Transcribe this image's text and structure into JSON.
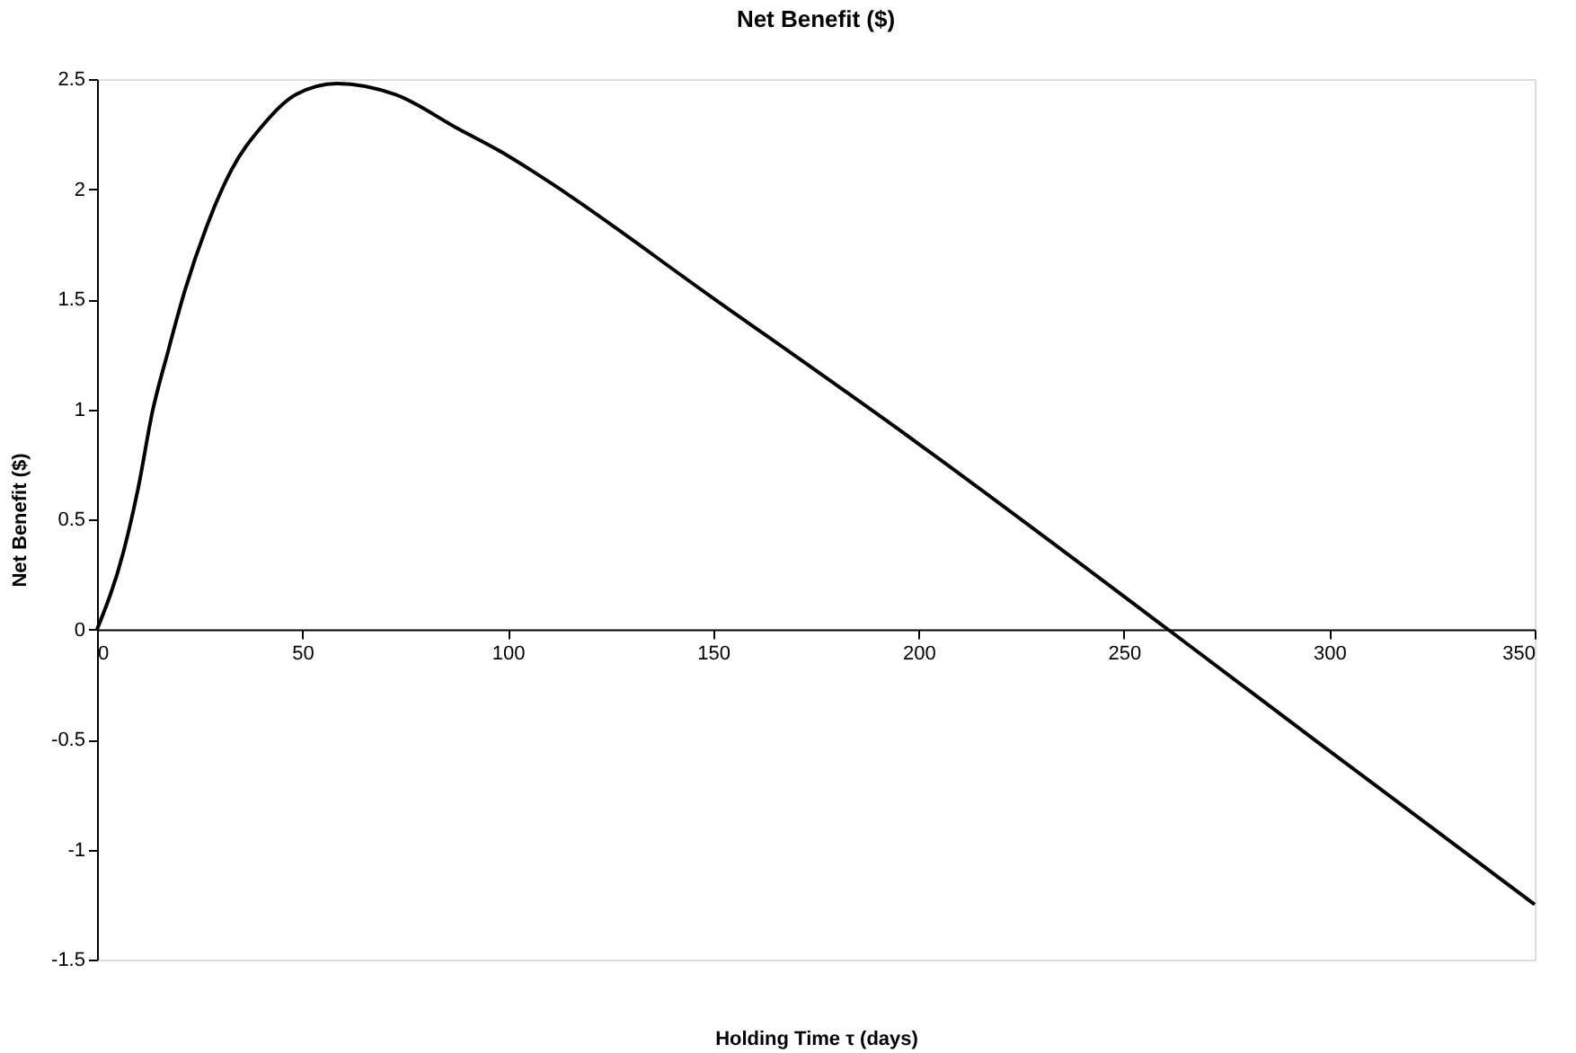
{
  "chart_data": {
    "type": "line",
    "title": "Net Benefit ($)",
    "xlabel": "Holding Time τ (days)",
    "ylabel": "Net Benefit ($)",
    "x": [
      0,
      6.4,
      10,
      13.5,
      17.1,
      21.4,
      27.1,
      32.8,
      39.9,
      48.4,
      58.4,
      72.6,
      88.3,
      98.3,
      107,
      149.6,
      198,
      260.7,
      297.7,
      350
    ],
    "series": [
      {
        "color": "#000000",
        "values": [
          0,
          0.35,
          0.64,
          0.99,
          1.25,
          1.54,
          1.85,
          2.09,
          2.28,
          2.43,
          2.48,
          2.43,
          2.27,
          2.17,
          2.07,
          1.51,
          0.87,
          0,
          -0.52,
          -1.25
        ]
      }
    ],
    "xlim": [
      0,
      350
    ],
    "xticks": [
      0,
      50,
      100,
      150,
      200,
      250,
      300,
      350
    ],
    "ylim": [
      -1.5,
      2.5
    ],
    "yticks": [
      -1.5,
      -1,
      -0.5,
      0,
      0.5,
      1,
      1.5,
      2,
      2.5
    ],
    "grid": false,
    "legend": false,
    "marker": "none",
    "line_style": "solid"
  }
}
